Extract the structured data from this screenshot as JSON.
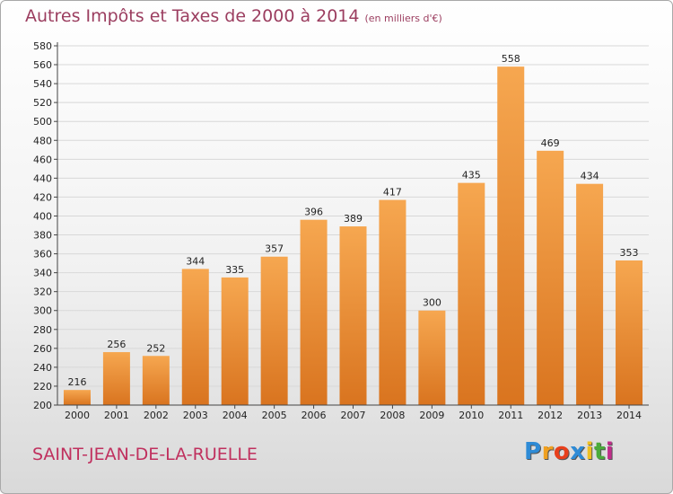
{
  "title": "Autres Impôts et Taxes de 2000 à 2014",
  "unit": "(en milliers d'€)",
  "commune": "SAINT-JEAN-DE-LA-RUELLE",
  "logo": {
    "letters": [
      "P",
      "r",
      "o",
      "x",
      "i",
      "t",
      "i"
    ],
    "colors": [
      "#2e8bd6",
      "#f0a020",
      "#e8401c",
      "#2e8bd6",
      "#f0c020",
      "#4aaa3a",
      "#c02c8a"
    ]
  },
  "colors": {
    "title": "#9b3d5f",
    "commune": "#c0305e",
    "bar_top": "#f6a750",
    "bar_bottom": "#d9741f",
    "grid": "#d8d8d8"
  },
  "chart_data": {
    "type": "bar",
    "categories": [
      "2000",
      "2001",
      "2002",
      "2003",
      "2004",
      "2005",
      "2006",
      "2007",
      "2008",
      "2009",
      "2010",
      "2011",
      "2012",
      "2013",
      "2014"
    ],
    "values": [
      216,
      256,
      252,
      344,
      335,
      357,
      396,
      389,
      417,
      300,
      435,
      558,
      469,
      434,
      353
    ],
    "ylim": [
      200,
      580
    ],
    "yticks": [
      200,
      220,
      240,
      260,
      280,
      300,
      320,
      340,
      360,
      380,
      400,
      420,
      440,
      460,
      480,
      500,
      520,
      540,
      560,
      580
    ],
    "grid": true
  }
}
